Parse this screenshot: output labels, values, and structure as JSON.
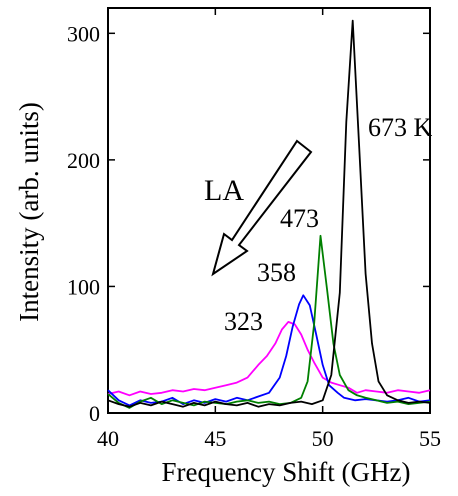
{
  "chart_data": {
    "type": "line",
    "title": "",
    "xlabel": "Frequency Shift (GHz)",
    "ylabel": "Intensity (arb. units)",
    "xlim": [
      40,
      55
    ],
    "ylim": [
      0,
      320
    ],
    "xticks": [
      40,
      45,
      50,
      55
    ],
    "yticks": [
      0,
      100,
      200,
      300
    ],
    "grid": false,
    "legend": "none",
    "annotation": {
      "text": "LA",
      "arrow": "pointing down-left toward lower temperatures"
    },
    "series": [
      {
        "name": "323",
        "color": "#ff00ff",
        "x": [
          40,
          40.5,
          41,
          41.5,
          42,
          42.5,
          43,
          43.5,
          44,
          44.5,
          45,
          45.5,
          46,
          46.5,
          47,
          47.4,
          47.8,
          48.1,
          48.4,
          48.7,
          49,
          49.3,
          49.6,
          50,
          50.4,
          50.8,
          51.2,
          51.6,
          52,
          52.5,
          53,
          53.5,
          54,
          54.5,
          55
        ],
        "y": [
          15,
          17,
          14,
          17,
          15,
          16,
          18,
          17,
          19,
          18,
          20,
          22,
          24,
          28,
          38,
          45,
          55,
          66,
          72,
          70,
          62,
          50,
          40,
          28,
          24,
          22,
          20,
          16,
          18,
          17,
          16,
          18,
          17,
          16,
          18
        ]
      },
      {
        "name": "358",
        "color": "#0000ff",
        "x": [
          40,
          40.5,
          41,
          41.5,
          42,
          42.5,
          43,
          43.5,
          44,
          44.5,
          45,
          45.5,
          46,
          46.5,
          47,
          47.5,
          48,
          48.3,
          48.6,
          48.9,
          49.1,
          49.4,
          49.7,
          50,
          50.3,
          50.7,
          51,
          51.5,
          52,
          52.5,
          53,
          53.5,
          54,
          54.5,
          55
        ],
        "y": [
          18,
          10,
          6,
          10,
          8,
          9,
          12,
          7,
          10,
          8,
          11,
          9,
          12,
          10,
          13,
          16,
          28,
          45,
          68,
          86,
          93,
          85,
          62,
          38,
          22,
          16,
          12,
          10,
          11,
          10,
          9,
          10,
          12,
          9,
          10
        ]
      },
      {
        "name": "473",
        "color": "#008000",
        "x": [
          40,
          40.5,
          41,
          41.5,
          42,
          42.5,
          43,
          43.5,
          44,
          44.5,
          45,
          45.5,
          46,
          46.5,
          47,
          47.5,
          48,
          48.5,
          49,
          49.3,
          49.6,
          49.9,
          50.2,
          50.5,
          50.8,
          51.2,
          51.6,
          52,
          52.5,
          53,
          53.5,
          54,
          54.5,
          55
        ],
        "y": [
          15,
          8,
          4,
          9,
          12,
          7,
          10,
          8,
          6,
          9,
          8,
          7,
          9,
          10,
          8,
          9,
          7,
          8,
          12,
          25,
          70,
          140,
          98,
          55,
          30,
          18,
          14,
          12,
          10,
          8,
          9,
          7,
          8,
          9
        ]
      },
      {
        "name": "673 K",
        "color": "#000000",
        "x": [
          40,
          40.5,
          41,
          41.5,
          42,
          42.5,
          43,
          43.5,
          44,
          44.5,
          45,
          45.5,
          46,
          46.5,
          47,
          47.5,
          48,
          48.5,
          49,
          49.5,
          50,
          50.4,
          50.8,
          51.1,
          51.4,
          51.7,
          52,
          52.3,
          52.6,
          53,
          53.5,
          54,
          54.5,
          55
        ],
        "y": [
          10,
          7,
          5,
          8,
          6,
          9,
          7,
          5,
          8,
          6,
          9,
          7,
          6,
          8,
          5,
          7,
          6,
          8,
          9,
          7,
          10,
          30,
          95,
          230,
          310,
          210,
          110,
          55,
          25,
          14,
          10,
          8,
          9,
          8
        ]
      }
    ],
    "series_labels": [
      "323",
      "358",
      "473",
      "673 K"
    ]
  }
}
